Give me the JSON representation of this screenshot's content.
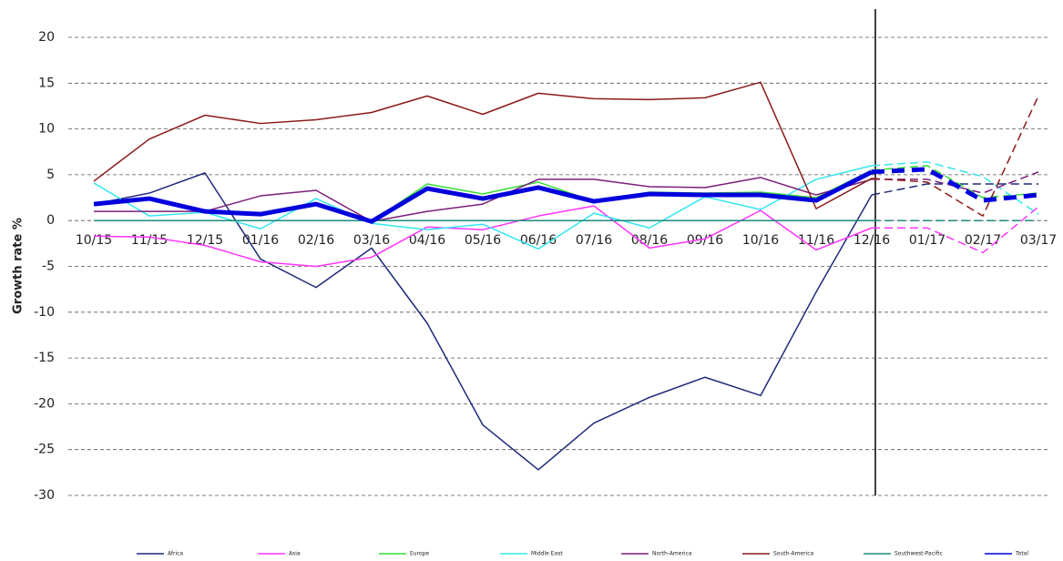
{
  "chart_data": {
    "type": "line",
    "y_label": "Growth rate %",
    "categories": [
      "10/15",
      "11/15",
      "12/15",
      "01/16",
      "02/16",
      "03/16",
      "04/16",
      "05/16",
      "06/16",
      "07/16",
      "08/16",
      "09/16",
      "10/16",
      "11/16",
      "12/16",
      "01/17",
      "02/17",
      "03/17"
    ],
    "ylim": [
      -30,
      20
    ],
    "yticks": [
      -30,
      -25,
      -20,
      -15,
      -10,
      -5,
      0,
      5,
      10,
      15,
      20
    ],
    "grid": true,
    "legend": "bottom",
    "series": [
      {
        "name": "Africa",
        "color": "#1f2a7a",
        "values": [
          1.8,
          3.0,
          5.2,
          -4.2,
          -7.3,
          -3.0,
          -11.2,
          -22.3,
          -27.2,
          -22.1,
          -19.3,
          -17.1,
          -19.1,
          -7.8,
          2.8,
          4.0,
          4.0,
          4.0
        ]
      },
      {
        "name": "Asia",
        "color": "#ff33ff",
        "values": [
          -1.7,
          -1.8,
          -2.7,
          -4.5,
          -5.0,
          -4.0,
          -0.7,
          -1.0,
          0.5,
          1.6,
          -3.0,
          -2.0,
          1.1,
          -3.2,
          -0.8,
          -0.8,
          -3.5,
          1.5
        ]
      },
      {
        "name": "Europe",
        "color": "#33dd33",
        "values": [
          1.8,
          2.5,
          1.0,
          0.6,
          1.7,
          -0.1,
          4.0,
          2.9,
          4.2,
          2.1,
          3.1,
          3.0,
          3.1,
          2.5,
          5.5,
          6.0,
          2.5,
          3.0
        ]
      },
      {
        "name": "Middle East",
        "color": "#33e6f0",
        "values": [
          4.1,
          0.5,
          0.9,
          -0.9,
          2.4,
          -0.3,
          -1.0,
          -0.4,
          -3.1,
          0.8,
          -0.8,
          2.6,
          1.2,
          4.5,
          6.0,
          6.4,
          4.8,
          0.7
        ]
      },
      {
        "name": "North-America",
        "color": "#7a1f7a",
        "values": [
          1.0,
          1.0,
          1.0,
          2.7,
          3.3,
          -0.1,
          1.0,
          1.8,
          4.5,
          4.5,
          3.7,
          3.6,
          4.7,
          2.8,
          4.5,
          4.5,
          3.0,
          5.3
        ]
      },
      {
        "name": "South-America",
        "color": "#8b1a1a",
        "values": [
          4.3,
          8.9,
          11.5,
          10.6,
          11.0,
          11.8,
          13.6,
          11.6,
          13.9,
          13.3,
          13.2,
          13.4,
          15.1,
          1.3,
          4.6,
          4.2,
          0.5,
          13.6
        ]
      },
      {
        "name": "Southwest-Pacific",
        "color": "#1a8a7a",
        "values": [
          0,
          0,
          0,
          0,
          0,
          0,
          0,
          0,
          0,
          0,
          0,
          0,
          0,
          0,
          0,
          0,
          0,
          0
        ]
      },
      {
        "name": "Total",
        "color": "#0000dd",
        "values": [
          1.8,
          2.4,
          1.0,
          0.7,
          1.8,
          -0.1,
          3.5,
          2.4,
          3.6,
          2.1,
          2.9,
          2.8,
          2.8,
          2.2,
          5.3,
          5.6,
          2.2,
          2.8
        ]
      }
    ]
  }
}
